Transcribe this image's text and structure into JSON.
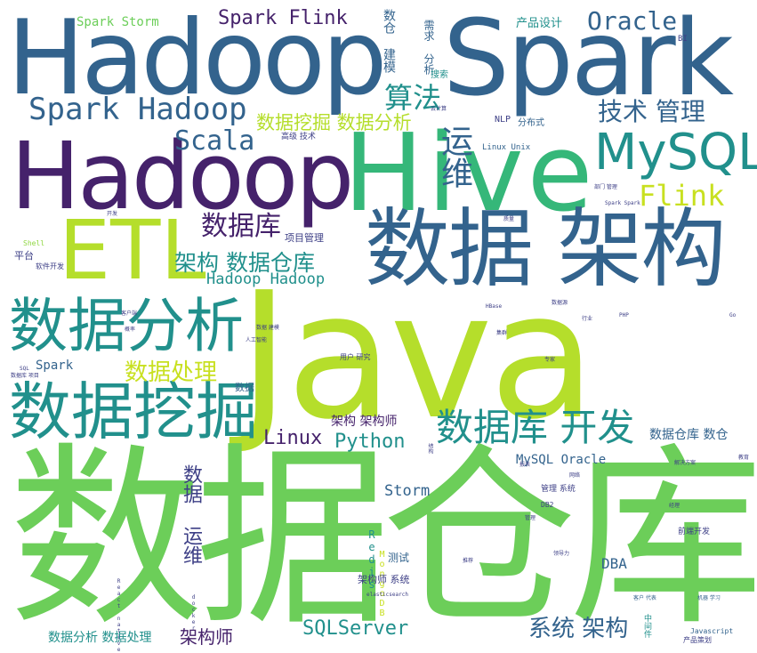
{
  "colors": {
    "dark_purple": "#45226b",
    "indigo": "#3d3f86",
    "steel_blue": "#33638d",
    "teal": "#21908c",
    "green": "#35b779",
    "yellow_green": "#b5de2b",
    "lime": "#6cce59",
    "light_green": "#90d743",
    "yellow": "#c8e020"
  },
  "words": [
    {
      "id": "java",
      "text": "Java"
    },
    {
      "id": "shujucangku",
      "text": "数据仓库"
    },
    {
      "id": "hadoop-top",
      "text": "Hadoop"
    },
    {
      "id": "spark-top",
      "text": "Spark"
    },
    {
      "id": "hadoop-mid",
      "text": "Hadoop"
    },
    {
      "id": "hive",
      "text": "Hive"
    },
    {
      "id": "shuju-jiagou",
      "text": "数据 架构"
    },
    {
      "id": "etl",
      "text": "ETL"
    },
    {
      "id": "mysql",
      "text": "MySQL"
    },
    {
      "id": "shujufenxi-big",
      "text": "数据分析"
    },
    {
      "id": "shujuwajue-big",
      "text": "数据挖掘"
    },
    {
      "id": "spark-hadoop",
      "text": "Spark Hadoop"
    },
    {
      "id": "shujuku-kaifa",
      "text": "数据库 开发"
    },
    {
      "id": "oracle",
      "text": "Oracle"
    },
    {
      "id": "spark-flink",
      "text": "Spark Flink"
    },
    {
      "id": "suanfa",
      "text": "算法"
    },
    {
      "id": "jishu-guanli",
      "text": "技术 管理"
    },
    {
      "id": "flink",
      "text": "Flink"
    },
    {
      "id": "scala",
      "text": "Scala"
    },
    {
      "id": "shujuku",
      "text": "数据库"
    },
    {
      "id": "jiagou-shujucangku",
      "text": "架构 数据仓库"
    },
    {
      "id": "shujuwajue-shujufenxi",
      "text": "数据挖掘 数据分析"
    },
    {
      "id": "yunwei-v",
      "text": "运维"
    },
    {
      "id": "shujuchuli",
      "text": "数据处理"
    },
    {
      "id": "hadoop-hadoop",
      "text": "Hadoop Hadoop"
    },
    {
      "id": "linux",
      "text": "Linux"
    },
    {
      "id": "python",
      "text": "Python"
    },
    {
      "id": "sqlserver",
      "text": "SQLServer"
    },
    {
      "id": "xitong-jiagou",
      "text": "系统 架构"
    },
    {
      "id": "jiagoushi",
      "text": "架构师"
    },
    {
      "id": "shuju-yunwei-v",
      "text": "数据 运维"
    },
    {
      "id": "storm",
      "text": "Storm"
    },
    {
      "id": "mysql-oracle",
      "text": "MySQL Oracle"
    },
    {
      "id": "jiagou-jiagoushi",
      "text": "架构 架构师"
    },
    {
      "id": "shujucangku-shucang",
      "text": "数据仓库 数仓"
    },
    {
      "id": "dba",
      "text": "DBA"
    },
    {
      "id": "shujufenxi-chuli",
      "text": "数据分析 数据处理"
    },
    {
      "id": "spark-storm",
      "text": "Spark Storm"
    },
    {
      "id": "shucang-jianmo-v",
      "text": "数仓 建模"
    },
    {
      "id": "xuqiu-fenxi-v",
      "text": "需求 分析"
    },
    {
      "id": "chanpin-sheji",
      "text": "产品设计"
    },
    {
      "id": "spark-small",
      "text": "Spark"
    },
    {
      "id": "xiangmu-guanli",
      "text": "项目管理"
    },
    {
      "id": "pingtai",
      "text": "平台"
    },
    {
      "id": "redis-v",
      "text": "Redis"
    },
    {
      "id": "mongodb-v",
      "text": "MongoDB"
    },
    {
      "id": "ceshi",
      "text": "测试"
    },
    {
      "id": "jiagoushi-xitong",
      "text": "架构师 系统"
    },
    {
      "id": "shuju-small",
      "text": "数据"
    },
    {
      "id": "nlp",
      "text": "NLP"
    },
    {
      "id": "fenbushi",
      "text": "分布式"
    },
    {
      "id": "sousuo",
      "text": "搜索"
    },
    {
      "id": "gaoji-jishu",
      "text": "高级 技术"
    },
    {
      "id": "linux-unix",
      "text": "Linux Unix"
    },
    {
      "id": "bi",
      "text": "BI"
    },
    {
      "id": "guanli-xitong",
      "text": "管理 系统"
    },
    {
      "id": "qianduan-kaifa",
      "text": "前端开发"
    },
    {
      "id": "yonghu-yanjiu",
      "text": "用户 研究"
    },
    {
      "id": "ruanjian-kaifa",
      "text": "软件开发"
    },
    {
      "id": "shell",
      "text": "Shell"
    },
    {
      "id": "javascript",
      "text": "Javascript"
    },
    {
      "id": "chanpin-cehua",
      "text": "产品策划"
    },
    {
      "id": "zhongjianjian-v",
      "text": "中间件"
    },
    {
      "id": "db2",
      "text": "DB2"
    },
    {
      "id": "jiejue-fangan",
      "text": "解决方案"
    },
    {
      "id": "kehu-daibiao",
      "text": "客户 代表"
    },
    {
      "id": "jiqi-xuexi",
      "text": "机器 学习"
    },
    {
      "id": "lingdaoli",
      "text": "领导力"
    },
    {
      "id": "bumen-guanli",
      "text": "部门 管理"
    },
    {
      "id": "spark-spark",
      "text": "Spark Spark"
    },
    {
      "id": "kaifa-small",
      "text": "开发"
    },
    {
      "id": "docker-v",
      "text": "docker"
    },
    {
      "id": "elasticsearch",
      "text": "elasticsearch"
    },
    {
      "id": "kehuduan",
      "text": "客户端"
    },
    {
      "id": "shuju-jianmo",
      "text": "数据 建模"
    },
    {
      "id": "rengong-zhineng",
      "text": "人工智能"
    },
    {
      "id": "gailv",
      "text": "概率"
    },
    {
      "id": "sql-small",
      "text": "SQL"
    },
    {
      "id": "shujuku-xiangmu",
      "text": "数据库 项目"
    },
    {
      "id": "guanli-small",
      "text": "管理"
    },
    {
      "id": "shujuyuan",
      "text": "数据源"
    },
    {
      "id": "hbase",
      "text": "HBase"
    },
    {
      "id": "jiqun",
      "text": "集群"
    },
    {
      "id": "hangye",
      "text": "行业"
    },
    {
      "id": "jiegou-v",
      "text": "结构"
    },
    {
      "id": "zhuanjia",
      "text": "专家"
    },
    {
      "id": "tuijian",
      "text": "推荐"
    },
    {
      "id": "go",
      "text": "Go"
    },
    {
      "id": "php",
      "text": "PHP"
    },
    {
      "id": "jiaoyu",
      "text": "教育"
    },
    {
      "id": "baobiao",
      "text": "报表"
    },
    {
      "id": "jingli",
      "text": "经理"
    },
    {
      "id": "wangluo",
      "text": "网络"
    },
    {
      "id": "yunjisuan",
      "text": "云计算"
    },
    {
      "id": "zhiliang",
      "text": "质量"
    },
    {
      "id": "react-native-v",
      "text": "React native"
    }
  ]
}
